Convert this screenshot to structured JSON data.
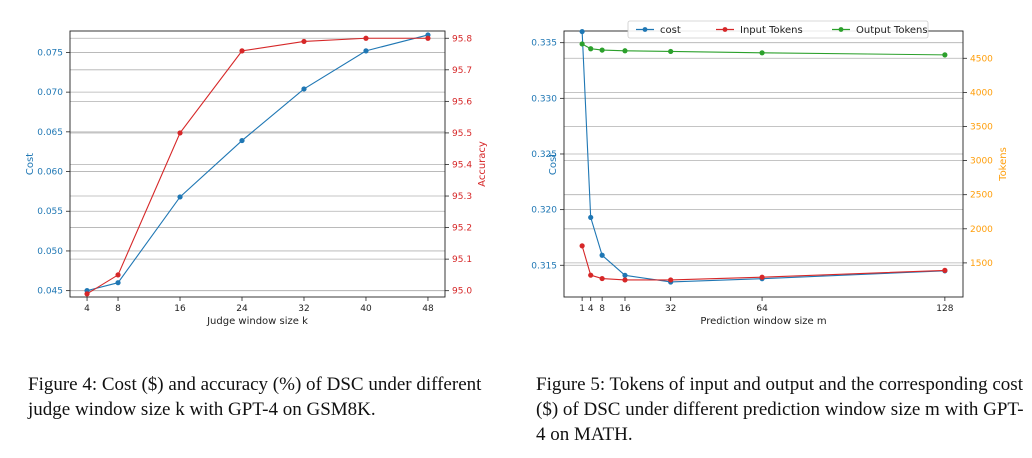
{
  "colors": {
    "blue": "#1f77b4",
    "red": "#d62728",
    "green": "#2ca02c",
    "orange": "#ff9e0a",
    "grid": "#b0b0b0"
  },
  "captions": {
    "fig4": "Figure 4:  Cost ($) and accuracy (%) of DSC under different judge window size k with GPT-4 on GSM8K.",
    "fig5": "Figure 5: Tokens of input and output and the corresponding cost ($) of DSC under different prediction window size m with GPT-4 on MATH."
  },
  "chart_data": [
    {
      "type": "line",
      "xlabel": "Judge window size k",
      "ylabel": "Cost",
      "ylabel_right": "Accuracy",
      "x": [
        4,
        8,
        16,
        24,
        32,
        40,
        48
      ],
      "xticks": [
        4,
        8,
        16,
        24,
        32,
        40,
        48
      ],
      "xlim": [
        1.8,
        50.2
      ],
      "ylim": [
        0.0442,
        0.0777
      ],
      "ylim_right": [
        94.98,
        95.823
      ],
      "yticks": [
        0.045,
        0.05,
        0.055,
        0.06,
        0.065,
        0.07,
        0.075
      ],
      "yticks_right": [
        95.0,
        95.1,
        95.2,
        95.3,
        95.4,
        95.5,
        95.6,
        95.7,
        95.8
      ],
      "grid": true,
      "series": [
        {
          "axis": "left",
          "color": "#1f77b4",
          "values": [
            0.045,
            0.046,
            0.0568,
            0.0639,
            0.0704,
            0.0752,
            0.0772
          ]
        },
        {
          "axis": "right",
          "color": "#d62728",
          "values": [
            94.99,
            95.05,
            95.5,
            95.76,
            95.79,
            95.8,
            95.8
          ]
        }
      ]
    },
    {
      "type": "line",
      "xlabel": "Prediction window size m",
      "ylabel": "Cost",
      "ylabel_right": "Tokens",
      "x": [
        1,
        4,
        8,
        16,
        32,
        64,
        128
      ],
      "xticks": [
        1,
        4,
        8,
        16,
        32,
        64,
        128
      ],
      "xlim": [
        -5.35,
        134.35
      ],
      "ylim": [
        0.31215,
        0.33605
      ],
      "ylim_right": [
        1000,
        4900
      ],
      "yticks": [
        0.315,
        0.32,
        0.325,
        0.33,
        0.335
      ],
      "yticks_right": [
        1500,
        2000,
        2500,
        3000,
        3500,
        4000,
        4500
      ],
      "grid": true,
      "legend": {
        "placement": "top",
        "entries": [
          "cost",
          "Input Tokens",
          "Output Tokens"
        ]
      },
      "series": [
        {
          "name": "cost",
          "axis": "left",
          "color": "#1f77b4",
          "values": [
            0.336,
            0.3193,
            0.3159,
            0.3141,
            0.3135,
            0.3138,
            0.3145
          ]
        },
        {
          "name": "Input Tokens",
          "axis": "right",
          "color": "#d62728",
          "values": [
            1750,
            1320,
            1270,
            1250,
            1250,
            1290,
            1390
          ]
        },
        {
          "name": "Output Tokens",
          "axis": "right",
          "color": "#2ca02c",
          "values": [
            4710,
            4640,
            4620,
            4610,
            4600,
            4580,
            4550
          ]
        }
      ]
    }
  ]
}
